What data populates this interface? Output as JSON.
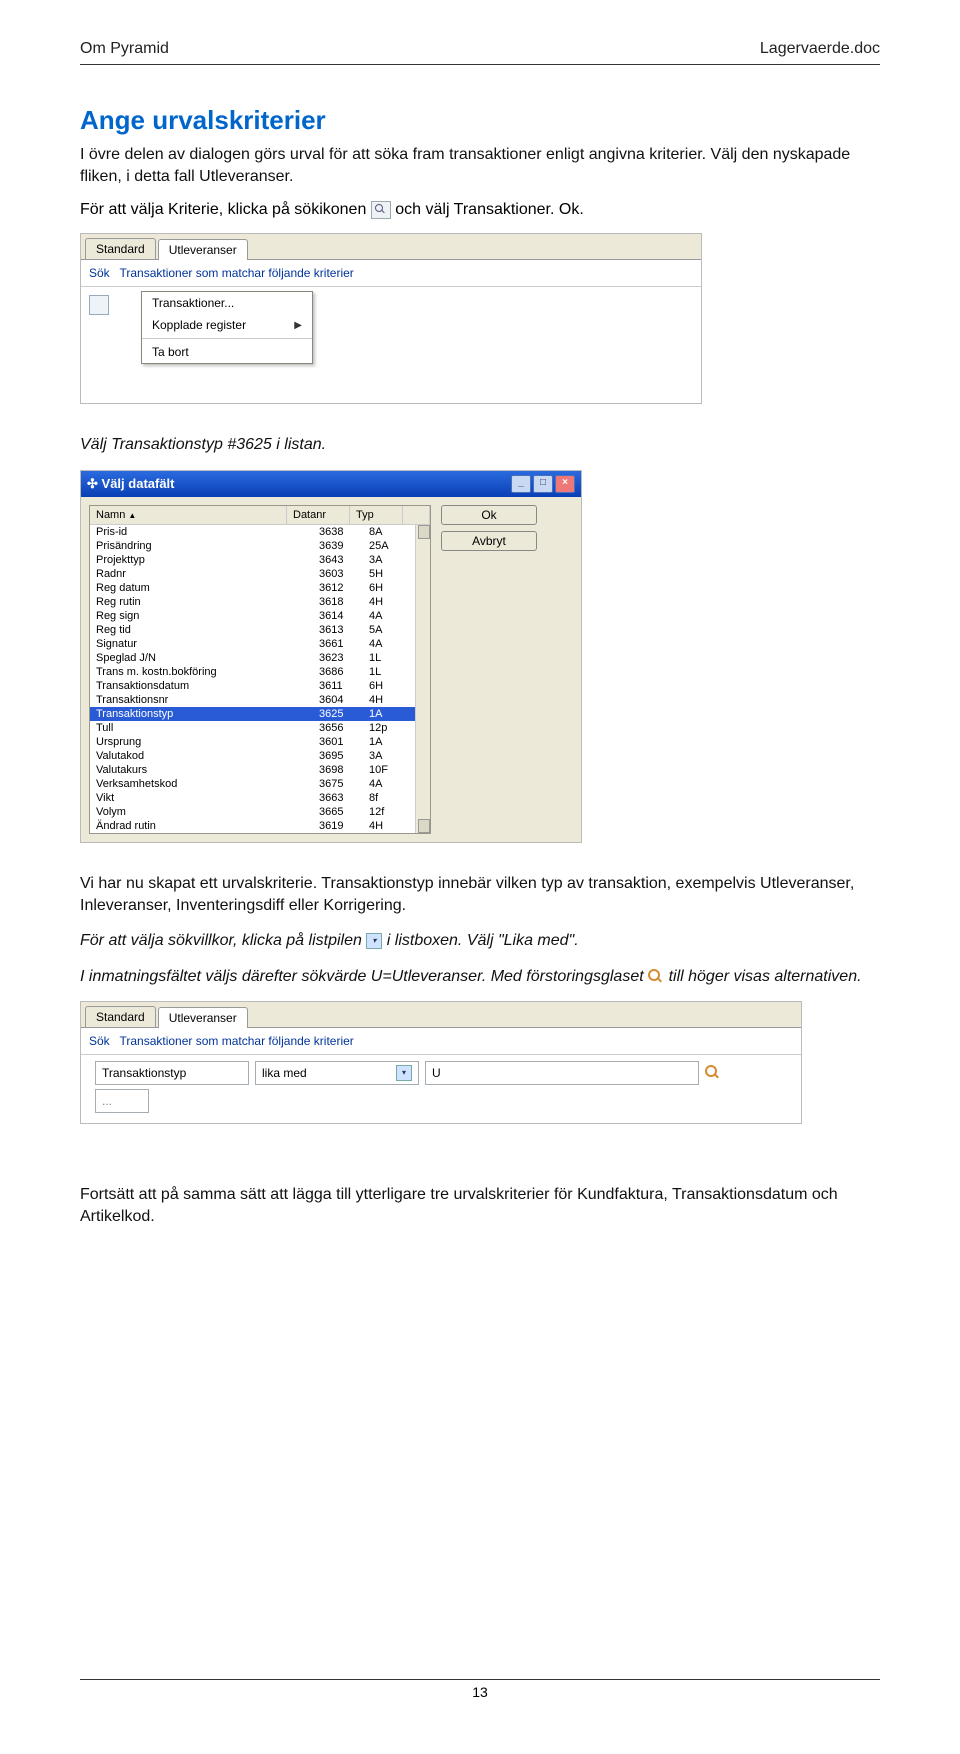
{
  "header": {
    "left": "Om Pyramid",
    "right": "Lagervaerde.doc"
  },
  "title": "Ange urvalskriterier",
  "para1": "I övre delen av dialogen görs urval för att söka fram transaktioner enligt angivna kriterier. Välj den nyskapade fliken, i detta fall Utleveranser.",
  "instr1_before": "För att välja Kriterie, klicka på sökikonen ",
  "instr1_after": " och välj Transaktioner. Ok.",
  "shot1": {
    "tabs": [
      "Standard",
      "Utleveranser"
    ],
    "sok_label": "Sök",
    "sok_text": "Transaktioner som matchar följande kriterier",
    "menu": {
      "item1": "Transaktioner...",
      "item2": "Kopplade register",
      "item3": "Ta bort"
    }
  },
  "caption1": "Välj Transaktionstyp #3625 i listan.",
  "picker": {
    "title": "Välj datafält",
    "columns": {
      "name": "Namn",
      "datanr": "Datanr",
      "typ": "Typ"
    },
    "buttons": {
      "ok": "Ok",
      "cancel": "Avbryt"
    },
    "rows": [
      {
        "name": "Pris-id",
        "datanr": "3638",
        "typ": "8A",
        "sel": false
      },
      {
        "name": "Prisändring",
        "datanr": "3639",
        "typ": "25A",
        "sel": false
      },
      {
        "name": "Projekttyp",
        "datanr": "3643",
        "typ": "3A",
        "sel": false
      },
      {
        "name": "Radnr",
        "datanr": "3603",
        "typ": "5H",
        "sel": false
      },
      {
        "name": "Reg datum",
        "datanr": "3612",
        "typ": "6H",
        "sel": false
      },
      {
        "name": "Reg rutin",
        "datanr": "3618",
        "typ": "4H",
        "sel": false
      },
      {
        "name": "Reg sign",
        "datanr": "3614",
        "typ": "4A",
        "sel": false
      },
      {
        "name": "Reg tid",
        "datanr": "3613",
        "typ": "5A",
        "sel": false
      },
      {
        "name": "Signatur",
        "datanr": "3661",
        "typ": "4A",
        "sel": false
      },
      {
        "name": "Speglad J/N",
        "datanr": "3623",
        "typ": "1L",
        "sel": false
      },
      {
        "name": "Trans m. kostn.bokföring",
        "datanr": "3686",
        "typ": "1L",
        "sel": false
      },
      {
        "name": "Transaktionsdatum",
        "datanr": "3611",
        "typ": "6H",
        "sel": false
      },
      {
        "name": "Transaktionsnr",
        "datanr": "3604",
        "typ": "4H",
        "sel": false
      },
      {
        "name": "Transaktionstyp",
        "datanr": "3625",
        "typ": "1A",
        "sel": true
      },
      {
        "name": "Tull",
        "datanr": "3656",
        "typ": "12p",
        "sel": false
      },
      {
        "name": "Ursprung",
        "datanr": "3601",
        "typ": "1A",
        "sel": false
      },
      {
        "name": "Valutakod",
        "datanr": "3695",
        "typ": "3A",
        "sel": false
      },
      {
        "name": "Valutakurs",
        "datanr": "3698",
        "typ": "10F",
        "sel": false
      },
      {
        "name": "Verksamhetskod",
        "datanr": "3675",
        "typ": "4A",
        "sel": false
      },
      {
        "name": "Vikt",
        "datanr": "3663",
        "typ": "8f",
        "sel": false
      },
      {
        "name": "Volym",
        "datanr": "3665",
        "typ": "12f",
        "sel": false
      },
      {
        "name": "Ändrad rutin",
        "datanr": "3619",
        "typ": "4H",
        "sel": false
      }
    ]
  },
  "para2": "Vi har nu skapat ett urvalskriterie. Transaktionstyp innebär vilken typ av transaktion, exempelvis Utleveranser, Inleveranser, Inventeringsdiff eller Korrigering.",
  "instr2_before": "För att välja sökvillkor, klicka på listpilen ",
  "instr2_after": " i listboxen. Välj \"Lika med\".",
  "instr3_before": "I inmatningsfältet väljs därefter sökvärde U=Utleveranser. Med förstoringsglaset ",
  "instr3_after": " till höger visas alternativen.",
  "shot3": {
    "tabs": [
      "Standard",
      "Utleveranser"
    ],
    "sok_label": "Sök",
    "sok_text": "Transaktioner som matchar följande kriterier",
    "row": {
      "name": "Transaktionstyp",
      "op": "lika med",
      "val": "U"
    },
    "row2_name": "..."
  },
  "para3": "Fortsätt att på samma sätt att lägga till ytterligare tre urvalskriterier för Kundfaktura, Transaktionsdatum och Artikelkod.",
  "page_number": "13"
}
